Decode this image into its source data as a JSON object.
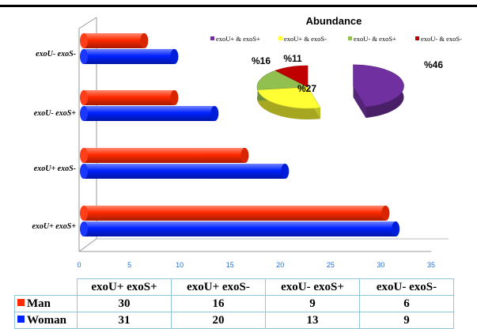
{
  "chart_data": [
    {
      "type": "bar",
      "orientation": "horizontal",
      "categories": [
        "exoU- exoS-",
        "exoU- exoS+",
        "exoU+ exoS-",
        "exoU+ exoS+"
      ],
      "series": [
        {
          "name": "Man",
          "color": "#ff2a00",
          "values": [
            6,
            9,
            16,
            30
          ]
        },
        {
          "name": "Woman",
          "color": "#0022ff",
          "values": [
            9,
            13,
            20,
            31
          ]
        }
      ],
      "xlim": [
        0,
        35
      ],
      "xticks": [
        0,
        5,
        10,
        15,
        20,
        25,
        30,
        35
      ],
      "table": {
        "columns": [
          "exoU+ exoS+",
          "exoU+ exoS-",
          "exoU- exoS+",
          "exoU- exoS-"
        ],
        "rows": [
          {
            "label": "Man",
            "values": [
              30,
              16,
              9,
              6
            ]
          },
          {
            "label": "Woman",
            "values": [
              31,
              20,
              13,
              9
            ]
          }
        ]
      }
    },
    {
      "type": "pie",
      "title": "Abundance",
      "labels": [
        "exoU+ & exoS+",
        "exoU+ & exoS-",
        "exoU- & exoS+",
        "exoU- & exoS-"
      ],
      "values": [
        46,
        27,
        16,
        11
      ],
      "value_labels": [
        "%46",
        "%27",
        "%16",
        "%11"
      ],
      "colors": [
        "#7030a0",
        "#ffff33",
        "#92c050",
        "#c00000"
      ],
      "legend_position": "top"
    }
  ]
}
